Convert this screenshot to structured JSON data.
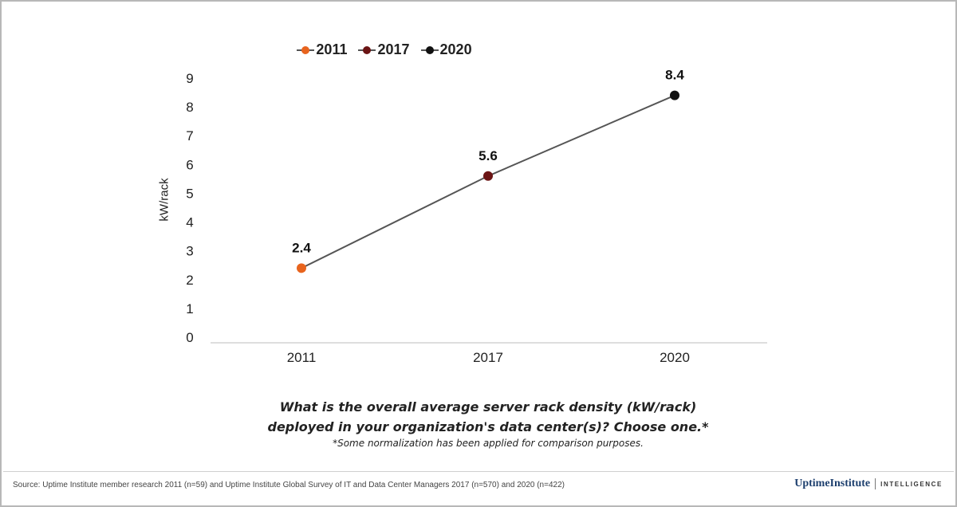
{
  "chart_data": {
    "type": "line",
    "categories": [
      "2011",
      "2017",
      "2020"
    ],
    "values": [
      2.4,
      5.6,
      8.4
    ],
    "data_labels": [
      "2.4",
      "5.6",
      "8.4"
    ],
    "point_colors": [
      "#e8641e",
      "#6b1414",
      "#111111"
    ],
    "line_color": "#555555",
    "legend": [
      {
        "label": "2011",
        "color": "#e8641e"
      },
      {
        "label": "2017",
        "color": "#6b1414"
      },
      {
        "label": "2020",
        "color": "#111111"
      }
    ],
    "legend_position": "top-center",
    "ylabel": "kW/rack",
    "xlabel": "",
    "ylim": [
      0,
      9
    ],
    "yticks": [
      "0",
      "1",
      "2",
      "3",
      "4",
      "5",
      "6",
      "7",
      "8",
      "9"
    ],
    "grid": false
  },
  "question": {
    "line1": "What is the overall average server rack density (kW/rack)",
    "line2": "deployed in your organization's data center(s)? Choose one.*",
    "note": "*Some normalization has been applied for comparison purposes."
  },
  "footer": {
    "source": "Source: Uptime Institute member research 2011 (n=59) and Uptime Institute Global Survey of IT and Data Center Managers 2017 (n=570) and 2020 (n=422)",
    "brand_name": "UptimeInstitute",
    "brand_sub": "INTELLIGENCE"
  }
}
